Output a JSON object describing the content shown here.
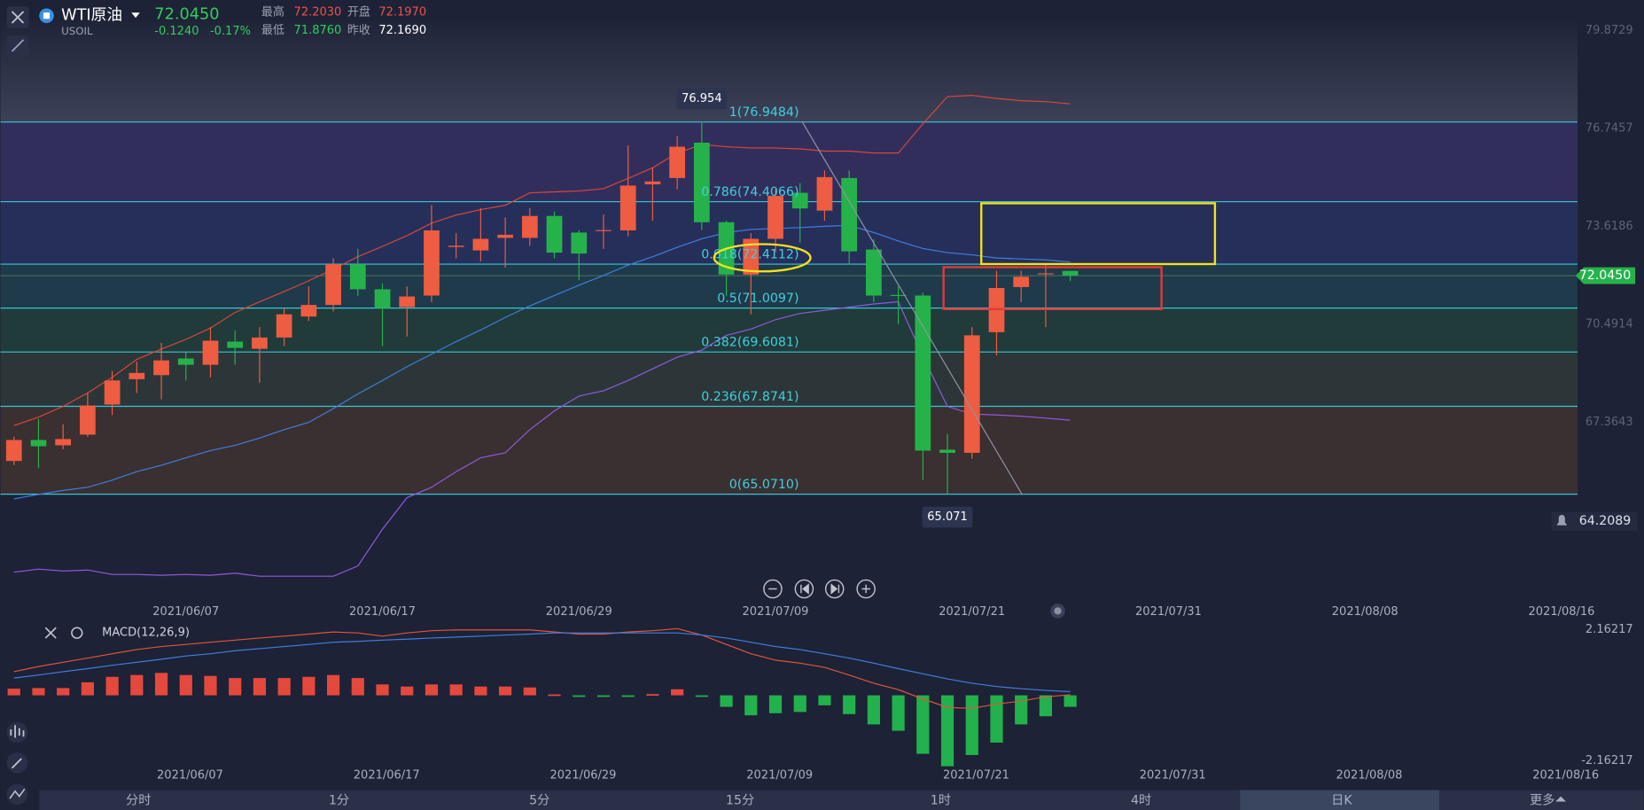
{
  "header": {
    "symbol": "WTI原油",
    "code": "USOIL",
    "price": "72.0450",
    "change": "-0.1240",
    "change_pct": "-0.17%",
    "high_label": "最高",
    "high": "72.2030",
    "open_label": "开盘",
    "open": "72.1970",
    "low_label": "最低",
    "low": "71.8760",
    "prev_close_label": "昨收",
    "prev_close": "72.1690"
  },
  "tabs": [
    "分时",
    "1分",
    "5分",
    "15分",
    "1时",
    "4时",
    "日K",
    "更多"
  ],
  "chart_data": [
    {
      "type": "candlestick",
      "up_color": "#ee5c42",
      "down_color": "#26b24a",
      "open": [
        66.13,
        66.8,
        66.63,
        66.97,
        67.93,
        68.74,
        68.87,
        69.4,
        69.2,
        69.94,
        69.71,
        70.07,
        70.74,
        71.11,
        72.41,
        71.61,
        71.04,
        71.41,
        72.96,
        72.85,
        73.25,
        73.25,
        73.95,
        73.42,
        73.47,
        73.49,
        74.96,
        75.16,
        76.29,
        73.75,
        72.08,
        73.22,
        74.69,
        74.12,
        75.16,
        72.88,
        71.43,
        71.41,
        66.49,
        66.39,
        70.24,
        71.68,
        72.1,
        72.197
      ],
      "high": [
        66.9,
        67.47,
        67.3,
        68.3,
        69.0,
        69.3,
        69.9,
        69.6,
        70.4,
        70.3,
        70.4,
        71.0,
        71.7,
        72.6,
        72.9,
        71.8,
        71.7,
        74.3,
        73.4,
        74.2,
        73.9,
        74.2,
        74.1,
        73.5,
        74.0,
        76.2,
        75.5,
        76.5,
        76.954,
        73.8,
        73.4,
        74.8,
        75.0,
        75.4,
        75.4,
        73.2,
        71.7,
        71.5,
        67.0,
        70.4,
        72.2,
        72.2,
        72.4,
        72.203
      ],
      "low": [
        66.0,
        65.9,
        66.5,
        66.9,
        67.6,
        68.3,
        68.1,
        68.7,
        68.8,
        69.2,
        68.63,
        69.8,
        70.6,
        70.9,
        71.4,
        69.8,
        70.1,
        71.2,
        72.6,
        72.5,
        72.3,
        73.0,
        72.6,
        71.9,
        72.9,
        73.3,
        73.8,
        74.8,
        73.5,
        71.4,
        70.81,
        72.8,
        73.1,
        73.8,
        72.4,
        71.2,
        70.5,
        65.52,
        65.071,
        66.2,
        69.5,
        71.2,
        70.4,
        71.876
      ],
      "close": [
        66.8,
        66.6,
        66.83,
        67.9,
        68.7,
        68.94,
        69.34,
        69.2,
        69.97,
        69.74,
        70.07,
        70.81,
        71.11,
        72.41,
        71.61,
        71.01,
        71.38,
        73.49,
        73.0,
        73.22,
        73.35,
        73.95,
        72.78,
        72.75,
        73.5,
        74.92,
        75.05,
        76.16,
        73.75,
        72.08,
        73.22,
        74.59,
        74.19,
        75.19,
        72.82,
        71.41,
        71.4,
        66.46,
        66.39,
        70.14,
        71.65,
        72.01,
        72.12,
        72.045
      ],
      "lines": [
        {
          "color": "#d9463a",
          "values": [
            67.26,
            67.53,
            67.87,
            68.3,
            68.8,
            69.37,
            69.7,
            70.01,
            70.37,
            70.87,
            71.21,
            71.54,
            71.88,
            72.25,
            72.65,
            72.98,
            73.32,
            73.72,
            73.98,
            74.15,
            74.29,
            74.69,
            74.72,
            74.75,
            74.82,
            75.15,
            75.49,
            75.96,
            76.23,
            76.16,
            76.12,
            76.12,
            76.09,
            76.02,
            76.02,
            75.96,
            75.96,
            76.89,
            77.76,
            77.8,
            77.7,
            77.63,
            77.6,
            77.53
          ]
        },
        {
          "color": "#3d7fe0",
          "values": [
            64.92,
            65.06,
            65.19,
            65.29,
            65.52,
            65.79,
            65.99,
            66.23,
            66.46,
            66.63,
            66.86,
            67.13,
            67.36,
            67.8,
            68.27,
            68.7,
            69.14,
            69.54,
            69.94,
            70.31,
            70.71,
            71.08,
            71.41,
            71.74,
            72.05,
            72.38,
            72.65,
            72.95,
            73.22,
            73.42,
            73.52,
            73.55,
            73.58,
            73.62,
            73.65,
            73.42,
            73.15,
            72.91,
            72.78,
            72.71,
            72.61,
            72.58,
            72.55,
            72.48
          ]
        },
        {
          "color": "#8e5ae0",
          "values": [
            62.58,
            62.68,
            62.62,
            62.65,
            62.51,
            62.51,
            62.48,
            62.51,
            62.48,
            62.55,
            62.45,
            62.45,
            62.45,
            62.45,
            62.78,
            63.95,
            64.96,
            65.29,
            65.79,
            66.23,
            66.39,
            67.13,
            67.73,
            68.2,
            68.37,
            68.7,
            69.07,
            69.44,
            69.67,
            70.14,
            70.34,
            70.64,
            70.84,
            70.94,
            71.04,
            71.14,
            71.21,
            69.47,
            67.87,
            67.63,
            67.6,
            67.56,
            67.5,
            67.43
          ]
        }
      ],
      "xlim": [
        -0.55,
        63.65
      ],
      "xticks": [
        {
          "value": 7,
          "label": "2021/06/07"
        },
        {
          "value": 15,
          "label": "2021/06/17"
        },
        {
          "value": 23,
          "label": "2021/06/29"
        },
        {
          "value": 31,
          "label": "2021/07/09"
        },
        {
          "value": 39,
          "label": "2021/07/21"
        },
        {
          "value": 47,
          "label": "2021/07/31"
        },
        {
          "value": 55,
          "label": "2021/08/08"
        },
        {
          "value": 63,
          "label": "2021/08/16"
        }
      ],
      "ylim": [
        62.0,
        80.843
      ],
      "yticks": [
        79.8729,
        76.7457,
        73.6186,
        70.4914,
        67.3643
      ],
      "fib_levels": [
        {
          "value": 76.9484,
          "label": "1(76.9484)"
        },
        {
          "value": 74.4066,
          "label": "0.786(74.4066)"
        },
        {
          "value": 72.4112,
          "label": "0.618(72.4112)"
        },
        {
          "value": 71.0097,
          "label": "0.5(71.0097)"
        },
        {
          "value": 69.6081,
          "label": "0.382(69.6081)"
        },
        {
          "value": 67.8741,
          "label": "0.236(67.8741)"
        },
        {
          "value": 65.071,
          "label": "0(65.0710)"
        }
      ],
      "last_price": {
        "value": 72.045,
        "label": "72.0450"
      },
      "alert_price": 64.2089,
      "high_mark": 76.954,
      "low_mark": 65.071
    },
    {
      "type": "macd",
      "title": "MACD(12,26,9)",
      "up_color": "#e5483d",
      "down_color": "#22b14c",
      "histogram": [
        0.22,
        0.24,
        0.24,
        0.43,
        0.61,
        0.67,
        0.74,
        0.67,
        0.64,
        0.57,
        0.57,
        0.57,
        0.61,
        0.67,
        0.57,
        0.36,
        0.29,
        0.36,
        0.36,
        0.29,
        0.29,
        0.26,
        0.03,
        -0.05,
        -0.05,
        -0.04,
        0.04,
        0.2,
        -0.05,
        -0.38,
        -0.66,
        -0.59,
        -0.55,
        -0.33,
        -0.62,
        -0.96,
        -1.17,
        -1.93,
        -2.34,
        -1.97,
        -1.56,
        -0.96,
        -0.69,
        -0.38
      ],
      "lines": [
        {
          "color": "#e0553a",
          "values": [
            0.78,
            0.95,
            1.09,
            1.23,
            1.37,
            1.51,
            1.61,
            1.68,
            1.75,
            1.82,
            1.89,
            1.95,
            2.02,
            2.09,
            2.06,
            1.95,
            2.06,
            2.13,
            2.16,
            2.16,
            2.16,
            2.16,
            2.09,
            2.02,
            2.02,
            2.09,
            2.13,
            2.2,
            1.99,
            1.68,
            1.37,
            1.16,
            1.06,
            0.92,
            0.67,
            0.4,
            0.19,
            -0.12,
            -0.4,
            -0.43,
            -0.29,
            -0.19,
            -0.05,
            0.02
          ]
        },
        {
          "color": "#3f7fdf",
          "values": [
            0.57,
            0.67,
            0.78,
            0.88,
            0.99,
            1.09,
            1.19,
            1.3,
            1.37,
            1.47,
            1.54,
            1.61,
            1.68,
            1.75,
            1.78,
            1.82,
            1.85,
            1.89,
            1.92,
            1.95,
            1.99,
            2.02,
            2.06,
            2.06,
            2.06,
            2.06,
            2.06,
            2.06,
            1.99,
            1.89,
            1.75,
            1.61,
            1.51,
            1.37,
            1.23,
            1.06,
            0.88,
            0.71,
            0.54,
            0.4,
            0.29,
            0.22,
            0.16,
            0.12
          ]
        }
      ],
      "xlim": [
        -0.55,
        63.65
      ],
      "xticks": [
        {
          "value": 7,
          "label": "2021/06/07"
        },
        {
          "value": 15,
          "label": "2021/06/17"
        },
        {
          "value": 23,
          "label": "2021/06/29"
        },
        {
          "value": 31,
          "label": "2021/07/09"
        },
        {
          "value": 39,
          "label": "2021/07/21"
        },
        {
          "value": 47,
          "label": "2021/07/31"
        },
        {
          "value": 55,
          "label": "2021/08/08"
        },
        {
          "value": 63,
          "label": "2021/08/16"
        }
      ],
      "ylim": [
        -2.47,
        2.37
      ],
      "yticks": [
        2.16217,
        -2.16217
      ]
    }
  ]
}
